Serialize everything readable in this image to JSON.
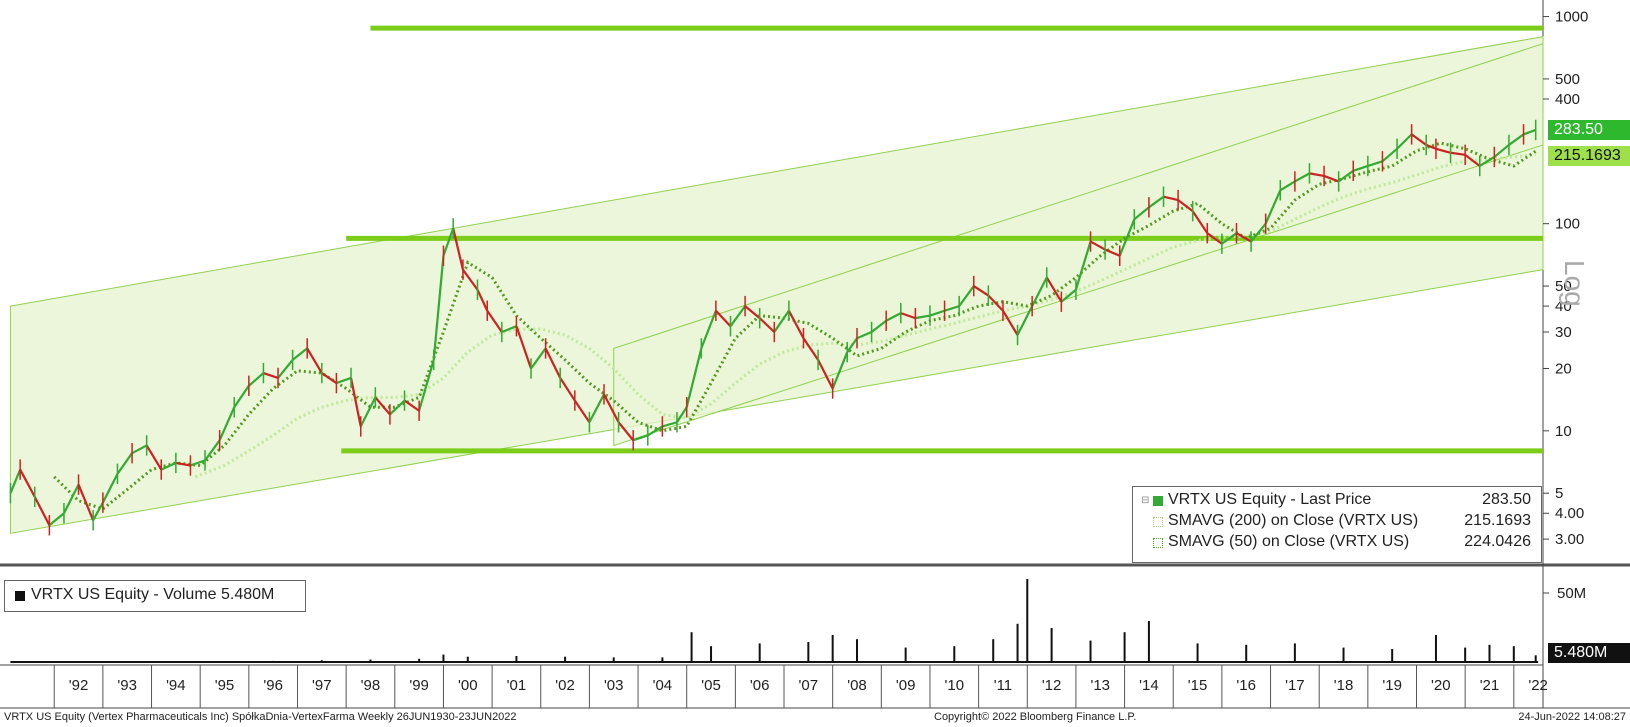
{
  "chart_data": [
    {
      "type": "line",
      "panel": "price",
      "scale": "log",
      "ylim": [
        2.6,
        1100
      ],
      "xlim": [
        1991.05,
        2022.6
      ],
      "y_ticks": [
        {
          "value": 1000,
          "label": "1000"
        },
        {
          "value": 500,
          "label": "500"
        },
        {
          "value": 400,
          "label": "400"
        },
        {
          "value": 100,
          "label": "100"
        },
        {
          "value": 50,
          "label": "50"
        },
        {
          "value": 40,
          "label": "40"
        },
        {
          "value": 30,
          "label": "30"
        },
        {
          "value": 20,
          "label": "20"
        },
        {
          "value": 10,
          "label": "10"
        },
        {
          "value": 5,
          "label": "5"
        },
        {
          "value": 4,
          "label": "4.00"
        },
        {
          "value": 3,
          "label": "3.00"
        }
      ],
      "axis_note": "Log",
      "series": [
        {
          "name": "VRTX US Equity - Last Price",
          "value": "283.50",
          "style": "candles",
          "color": "#33aa33",
          "x": [
            1991.1,
            1991.3,
            1991.6,
            1991.9,
            1992.2,
            1992.5,
            1992.8,
            1993.0,
            1993.3,
            1993.6,
            1993.9,
            1994.2,
            1994.5,
            1994.8,
            1995.1,
            1995.4,
            1995.7,
            1996.0,
            1996.3,
            1996.6,
            1996.9,
            1997.2,
            1997.5,
            1997.8,
            1998.1,
            1998.3,
            1998.6,
            1998.9,
            1999.2,
            1999.5,
            1999.8,
            2000.0,
            2000.2,
            2000.4,
            2000.7,
            2000.9,
            2001.2,
            2001.5,
            2001.8,
            2002.1,
            2002.4,
            2002.7,
            2003.0,
            2003.3,
            2003.6,
            2003.9,
            2004.2,
            2004.5,
            2004.8,
            2005.0,
            2005.3,
            2005.6,
            2005.9,
            2006.2,
            2006.5,
            2006.8,
            2007.1,
            2007.4,
            2007.7,
            2008.0,
            2008.3,
            2008.5,
            2008.8,
            2009.1,
            2009.4,
            2009.7,
            2010.0,
            2010.3,
            2010.6,
            2010.9,
            2011.2,
            2011.5,
            2011.8,
            2012.1,
            2012.4,
            2012.7,
            2013.0,
            2013.3,
            2013.6,
            2013.9,
            2014.2,
            2014.5,
            2014.8,
            2015.1,
            2015.4,
            2015.7,
            2016.0,
            2016.3,
            2016.6,
            2016.9,
            2017.2,
            2017.5,
            2017.8,
            2018.1,
            2018.4,
            2018.7,
            2019.0,
            2019.3,
            2019.6,
            2019.9,
            2020.2,
            2020.4,
            2020.7,
            2021.0,
            2021.3,
            2021.6,
            2021.9,
            2022.2,
            2022.45
          ],
          "y": [
            5.0,
            6.5,
            4.8,
            3.5,
            4.0,
            5.5,
            3.7,
            4.5,
            6.2,
            7.8,
            8.5,
            6.5,
            7.0,
            6.8,
            7.2,
            9.0,
            13.0,
            16.5,
            19.0,
            18.0,
            22.0,
            25.0,
            19.0,
            17.0,
            18.0,
            10.5,
            14.5,
            12.0,
            14.0,
            12.5,
            22.0,
            70.0,
            95.0,
            60.0,
            48.0,
            38.0,
            30.0,
            32.0,
            20.0,
            25.0,
            18.0,
            14.0,
            11.0,
            15.0,
            11.0,
            9.0,
            9.5,
            10.5,
            11.0,
            13.0,
            25.0,
            38.0,
            32.0,
            40.0,
            35.0,
            30.0,
            38.0,
            28.0,
            22.0,
            16.0,
            24.0,
            28.0,
            30.0,
            34.0,
            37.0,
            35.0,
            36.0,
            38.0,
            40.0,
            50.0,
            45.0,
            38.0,
            29.0,
            40.0,
            55.0,
            42.0,
            48.0,
            82.0,
            75.0,
            70.0,
            105.0,
            120.0,
            135.0,
            130.0,
            115.0,
            90.0,
            80.0,
            90.0,
            82.0,
            100.0,
            145.0,
            160.0,
            175.0,
            170.0,
            160.0,
            180.0,
            190.0,
            200.0,
            230.0,
            270.0,
            240.0,
            230.0,
            220.0,
            215.0,
            190.0,
            210.0,
            240.0,
            270.0,
            283.5
          ]
        },
        {
          "name": "SMAVG (200)  on Close (VRTX US)",
          "value": "215.1693",
          "style": "dotted",
          "color": "#bfe89a",
          "x": [
            1994.9,
            1995.5,
            1996.0,
            1996.5,
            1997.0,
            1997.5,
            1998.0,
            1998.5,
            1999.0,
            1999.5,
            2000.0,
            2000.5,
            2001.0,
            2001.5,
            2002.0,
            2002.5,
            2003.0,
            2003.5,
            2004.0,
            2004.5,
            2005.0,
            2005.5,
            2006.0,
            2006.5,
            2007.0,
            2007.5,
            2008.0,
            2008.5,
            2009.0,
            2009.5,
            2010.0,
            2010.5,
            2011.0,
            2011.5,
            2012.0,
            2012.5,
            2013.0,
            2013.5,
            2014.0,
            2014.5,
            2015.0,
            2015.5,
            2016.0,
            2016.5,
            2017.0,
            2017.5,
            2018.0,
            2018.5,
            2019.0,
            2019.5,
            2020.0,
            2020.5,
            2021.0,
            2021.5,
            2022.0,
            2022.45
          ],
          "y": [
            6.0,
            6.8,
            8.0,
            9.5,
            11.5,
            13.0,
            14.0,
            14.5,
            14.5,
            15.0,
            18.0,
            24.0,
            29.0,
            31.0,
            31.0,
            29.0,
            25.0,
            20.0,
            15.0,
            12.0,
            11.5,
            13.5,
            17.0,
            21.0,
            24.0,
            26.0,
            26.5,
            26.0,
            27.0,
            29.0,
            31.0,
            33.0,
            35.5,
            38.0,
            40.0,
            43.0,
            47.0,
            53.0,
            60.0,
            68.0,
            77.0,
            83.0,
            86.0,
            87.0,
            92.0,
            105.0,
            120.0,
            135.0,
            147.0,
            158.0,
            172.0,
            188.0,
            200.0,
            205.0,
            210.0,
            215.17
          ]
        },
        {
          "name": "SMAVG (50)  on Close (VRTX US)",
          "value": "224.0426",
          "style": "dotted",
          "color": "#559922",
          "x": [
            1992.0,
            1992.5,
            1993.0,
            1993.5,
            1994.0,
            1994.5,
            1995.0,
            1995.5,
            1996.0,
            1996.5,
            1997.0,
            1997.5,
            1998.0,
            1998.5,
            1999.0,
            1999.5,
            2000.0,
            2000.5,
            2001.0,
            2001.5,
            2002.0,
            2002.5,
            2003.0,
            2003.5,
            2004.0,
            2004.5,
            2005.0,
            2005.5,
            2006.0,
            2006.5,
            2007.0,
            2007.5,
            2008.0,
            2008.5,
            2009.0,
            2009.5,
            2010.0,
            2010.5,
            2011.0,
            2011.5,
            2012.0,
            2012.5,
            2013.0,
            2013.5,
            2014.0,
            2014.5,
            2015.0,
            2015.5,
            2016.0,
            2016.5,
            2017.0,
            2017.5,
            2018.0,
            2018.5,
            2019.0,
            2019.5,
            2020.0,
            2020.5,
            2021.0,
            2021.5,
            2022.0,
            2022.45
          ],
          "y": [
            6.0,
            4.6,
            4.2,
            5.2,
            6.5,
            7.0,
            6.8,
            8.5,
            12.0,
            16.0,
            19.5,
            19.0,
            16.0,
            13.0,
            13.0,
            14.5,
            30.0,
            65.0,
            55.0,
            36.0,
            28.0,
            22.0,
            17.0,
            14.0,
            11.0,
            10.0,
            10.5,
            17.0,
            28.0,
            36.0,
            35.0,
            33.0,
            28.0,
            23.0,
            25.0,
            30.0,
            34.0,
            36.0,
            40.0,
            42.0,
            40.0,
            45.0,
            55.0,
            70.0,
            85.0,
            98.0,
            115.0,
            125.0,
            100.0,
            85.0,
            95.0,
            130.0,
            155.0,
            165.0,
            178.0,
            190.0,
            225.0,
            245.0,
            230.0,
            205.0,
            190.0,
            224.04
          ]
        }
      ],
      "horizontal_levels": [
        {
          "value": 880,
          "from": 1998.5,
          "to": 2022.6
        },
        {
          "value": 85,
          "from": 1998.0,
          "to": 2022.6
        },
        {
          "value": 8.0,
          "from": 1997.9,
          "to": 2022.6
        }
      ],
      "channels": [
        {
          "upper": [
            [
              1991.1,
              40
            ],
            [
              2022.6,
              800
            ]
          ],
          "lower": [
            [
              1991.1,
              3.2
            ],
            [
              2022.6,
              60
            ]
          ]
        },
        {
          "upper": [
            [
              2003.5,
              25
            ],
            [
              2022.6,
              740
            ]
          ],
          "lower": [
            [
              2003.5,
              8.5
            ],
            [
              2022.6,
              240
            ]
          ]
        }
      ],
      "legend": "bottom-right",
      "price_tags": {
        "last": "283.50",
        "sma": "215.1693"
      }
    },
    {
      "type": "bar",
      "panel": "volume",
      "series_name": "VRTX US Equity - Volume 5.480M",
      "ylim": [
        0,
        70
      ],
      "y_ticks": [
        {
          "value": 50,
          "label": "50M"
        }
      ],
      "last_value_label": "5.480M",
      "x": [
        1991.5,
        1992.5,
        1993.5,
        1994.5,
        1995.5,
        1996.5,
        1997.5,
        1998.5,
        1999.5,
        2000.0,
        2000.5,
        2001.5,
        2002.5,
        2003.5,
        2004.5,
        2005.1,
        2005.5,
        2006.5,
        2007.5,
        2008.0,
        2008.5,
        2009.5,
        2010.5,
        2011.3,
        2011.8,
        2012.0,
        2012.5,
        2013.3,
        2014.0,
        2014.5,
        2015.5,
        2016.5,
        2017.5,
        2018.5,
        2019.5,
        2020.4,
        2021.0,
        2021.5,
        2022.0,
        2022.45
      ],
      "values": [
        0.5,
        0.6,
        0.8,
        1.0,
        1.2,
        1.5,
        2.0,
        2.5,
        3.0,
        6.0,
        4.5,
        5.0,
        4.5,
        4.0,
        4.0,
        22.0,
        12.0,
        14.0,
        15.0,
        20.0,
        17.0,
        11.0,
        12.0,
        17.0,
        28.0,
        60.0,
        25.0,
        16.0,
        22.0,
        30.0,
        14.0,
        13.0,
        14.0,
        11.0,
        10.0,
        20.0,
        11.0,
        13.0,
        12.0,
        5.48
      ]
    }
  ],
  "x_axis": {
    "labels": [
      "'92",
      "'93",
      "'94",
      "'95",
      "'96",
      "'97",
      "'98",
      "'99",
      "'00",
      "'01",
      "'02",
      "'03",
      "'04",
      "'05",
      "'06",
      "'07",
      "'08",
      "'09",
      "'10",
      "'11",
      "'12",
      "'13",
      "'14",
      "'15",
      "'16",
      "'17",
      "'18",
      "'19",
      "'20",
      "'21",
      "'22"
    ]
  },
  "footer": {
    "left": "VRTX US Equity (Vertex Pharmaceuticals Inc) SpółkaDnia-VertexFarma   Weekly 26JUN1930-23JUN2022",
    "center": "Copyright© 2022 Bloomberg Finance L.P.",
    "right": "24-Jun-2022 14:08:27"
  },
  "colors": {
    "up": "#33aa33",
    "down": "#cc2222",
    "level": "#7ccc1a",
    "channel_fill": "#e9f5d6",
    "channel_line": "#8fd14f"
  }
}
